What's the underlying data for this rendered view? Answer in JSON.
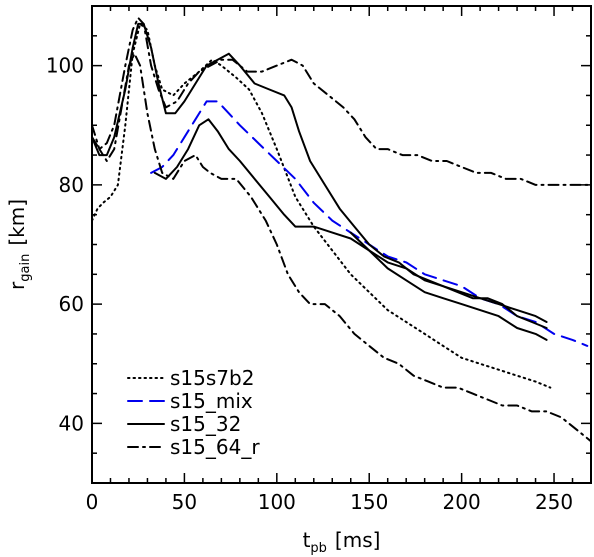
{
  "chart_data": {
    "type": "line",
    "title": "",
    "xlabel": "t_pb [ms]",
    "xlabel_main": "t",
    "xlabel_sub": "pb",
    "xlabel_unit": "[ms]",
    "ylabel": "r_gain [km]",
    "ylabel_main": "r",
    "ylabel_sub": "gain",
    "ylabel_unit": "[km]",
    "xlim": [
      0,
      270
    ],
    "ylim": [
      30,
      110
    ],
    "x_ticks": [
      0,
      50,
      100,
      150,
      200,
      250
    ],
    "y_ticks": [
      40,
      60,
      80,
      100
    ],
    "grid": false,
    "legend_position": "bottom-left",
    "series": [
      {
        "name": "s15s7b2",
        "color": "#000000",
        "dash": "dotted",
        "points": [
          [
            0,
            74
          ],
          [
            3,
            76
          ],
          [
            6,
            77
          ],
          [
            10,
            78
          ],
          [
            14,
            80
          ],
          [
            18,
            90
          ],
          [
            22,
            102
          ],
          [
            26,
            107
          ],
          [
            30,
            106
          ],
          [
            34,
            100
          ],
          [
            38,
            96
          ],
          [
            44,
            95
          ],
          [
            50,
            97
          ],
          [
            58,
            99
          ],
          [
            65,
            101
          ],
          [
            70,
            100
          ],
          [
            78,
            98
          ],
          [
            85,
            96
          ],
          [
            92,
            92
          ],
          [
            100,
            86
          ],
          [
            110,
            78
          ],
          [
            120,
            73
          ],
          [
            130,
            69
          ],
          [
            140,
            65
          ],
          [
            150,
            62
          ],
          [
            160,
            59
          ],
          [
            170,
            57
          ],
          [
            180,
            55
          ],
          [
            190,
            53
          ],
          [
            200,
            51
          ],
          [
            210,
            50
          ],
          [
            220,
            49
          ],
          [
            230,
            48
          ],
          [
            240,
            47
          ],
          [
            248,
            46
          ]
        ]
      },
      {
        "name": "s15_mix",
        "color": "#0000ee",
        "dash": "dashed",
        "points": [
          [
            32,
            82
          ],
          [
            38,
            83
          ],
          [
            44,
            85
          ],
          [
            50,
            88
          ],
          [
            56,
            91
          ],
          [
            62,
            94
          ],
          [
            68,
            94
          ],
          [
            74,
            92
          ],
          [
            80,
            90
          ],
          [
            90,
            87
          ],
          [
            100,
            84
          ],
          [
            110,
            81
          ],
          [
            120,
            77
          ],
          [
            130,
            74
          ],
          [
            140,
            72
          ],
          [
            150,
            70
          ],
          [
            160,
            68
          ],
          [
            170,
            67
          ],
          [
            180,
            65
          ],
          [
            190,
            64
          ],
          [
            200,
            63
          ],
          [
            210,
            61
          ],
          [
            220,
            60
          ],
          [
            230,
            58
          ],
          [
            240,
            57
          ],
          [
            250,
            55
          ],
          [
            260,
            54
          ],
          [
            268,
            53
          ]
        ]
      },
      {
        "name": "s15_32",
        "color": "#000000",
        "dash": "solid",
        "points": [
          [
            0,
            88
          ],
          [
            4,
            85
          ],
          [
            8,
            85
          ],
          [
            12,
            88
          ],
          [
            18,
            96
          ],
          [
            22,
            103
          ],
          [
            25,
            107
          ],
          [
            28,
            107
          ],
          [
            32,
            103
          ],
          [
            36,
            97
          ],
          [
            40,
            92
          ],
          [
            45,
            92
          ],
          [
            50,
            94
          ],
          [
            56,
            97
          ],
          [
            62,
            100
          ],
          [
            68,
            101
          ],
          [
            74,
            102
          ],
          [
            80,
            100
          ],
          [
            88,
            97
          ],
          [
            96,
            96
          ],
          [
            104,
            95
          ],
          [
            108,
            93
          ],
          [
            112,
            89
          ],
          [
            118,
            84
          ],
          [
            126,
            80
          ],
          [
            134,
            76
          ],
          [
            142,
            73
          ],
          [
            150,
            70
          ],
          [
            158,
            68
          ],
          [
            166,
            67
          ],
          [
            174,
            65
          ],
          [
            182,
            64
          ],
          [
            190,
            63
          ],
          [
            198,
            62
          ],
          [
            206,
            61
          ],
          [
            214,
            61
          ],
          [
            222,
            60
          ],
          [
            230,
            58
          ],
          [
            238,
            57
          ],
          [
            246,
            56
          ]
        ]
      },
      {
        "name": "s15_32",
        "color": "#000000",
        "dash": "solid",
        "points": [
          [
            34,
            82
          ],
          [
            40,
            81
          ],
          [
            46,
            83
          ],
          [
            52,
            86
          ],
          [
            58,
            90
          ],
          [
            63,
            91
          ],
          [
            68,
            89
          ],
          [
            74,
            86
          ],
          [
            80,
            84
          ],
          [
            88,
            81
          ],
          [
            96,
            78
          ],
          [
            104,
            75
          ],
          [
            110,
            73
          ],
          [
            120,
            73
          ],
          [
            130,
            72
          ],
          [
            140,
            71
          ],
          [
            150,
            69
          ],
          [
            160,
            67
          ],
          [
            170,
            66
          ],
          [
            180,
            64
          ],
          [
            190,
            63
          ],
          [
            200,
            62
          ],
          [
            210,
            61
          ],
          [
            220,
            60
          ],
          [
            230,
            59
          ],
          [
            240,
            58
          ],
          [
            246,
            57
          ]
        ]
      },
      {
        "name": "s15_32",
        "color": "#000000",
        "dash": "solid",
        "points": [
          [
            140,
            72
          ],
          [
            150,
            69
          ],
          [
            160,
            66
          ],
          [
            170,
            64
          ],
          [
            180,
            62
          ],
          [
            190,
            61
          ],
          [
            200,
            60
          ],
          [
            210,
            59
          ],
          [
            220,
            58
          ],
          [
            230,
            56
          ],
          [
            240,
            55
          ],
          [
            246,
            54
          ]
        ]
      },
      {
        "name": "s15_64_r",
        "color": "#000000",
        "dash": "dashdot",
        "points": [
          [
            0,
            90
          ],
          [
            4,
            86
          ],
          [
            8,
            84
          ],
          [
            12,
            86
          ],
          [
            16,
            93
          ],
          [
            20,
            100
          ],
          [
            23,
            102
          ],
          [
            26,
            100
          ],
          [
            30,
            92
          ],
          [
            34,
            86
          ],
          [
            38,
            82
          ],
          [
            44,
            81
          ],
          [
            50,
            84
          ],
          [
            56,
            85
          ],
          [
            60,
            83
          ],
          [
            64,
            82
          ],
          [
            70,
            81
          ],
          [
            78,
            81
          ],
          [
            86,
            78
          ],
          [
            94,
            74
          ],
          [
            100,
            70
          ],
          [
            106,
            65
          ],
          [
            112,
            62
          ],
          [
            118,
            60
          ],
          [
            126,
            60
          ],
          [
            134,
            58
          ],
          [
            142,
            55
          ],
          [
            150,
            53
          ],
          [
            158,
            51
          ],
          [
            166,
            50
          ],
          [
            174,
            48
          ],
          [
            182,
            47
          ],
          [
            190,
            46
          ],
          [
            198,
            46
          ],
          [
            206,
            45
          ],
          [
            214,
            44
          ],
          [
            222,
            43
          ],
          [
            230,
            43
          ],
          [
            238,
            42
          ],
          [
            246,
            42
          ],
          [
            254,
            41
          ],
          [
            262,
            39
          ],
          [
            270,
            37
          ]
        ]
      },
      {
        "name": "s15_64_r",
        "color": "#000000",
        "dash": "dashdot",
        "points": [
          [
            0,
            88
          ],
          [
            4,
            86
          ],
          [
            8,
            87
          ],
          [
            12,
            90
          ],
          [
            18,
            100
          ],
          [
            22,
            106
          ],
          [
            25,
            108
          ],
          [
            28,
            107
          ],
          [
            32,
            100
          ],
          [
            36,
            96
          ],
          [
            40,
            93
          ],
          [
            46,
            94
          ],
          [
            52,
            97
          ],
          [
            58,
            99
          ],
          [
            64,
            100
          ],
          [
            70,
            101
          ],
          [
            76,
            101
          ],
          [
            84,
            99
          ],
          [
            92,
            99
          ],
          [
            100,
            100
          ],
          [
            108,
            101
          ],
          [
            114,
            100
          ],
          [
            120,
            97
          ],
          [
            128,
            95
          ],
          [
            136,
            93
          ],
          [
            142,
            91
          ],
          [
            148,
            88
          ],
          [
            154,
            86
          ],
          [
            160,
            86
          ],
          [
            168,
            85
          ],
          [
            176,
            85
          ],
          [
            184,
            84
          ],
          [
            192,
            84
          ],
          [
            200,
            83
          ],
          [
            208,
            82
          ],
          [
            216,
            82
          ],
          [
            224,
            81
          ],
          [
            232,
            81
          ],
          [
            240,
            80
          ],
          [
            248,
            80
          ],
          [
            256,
            80
          ],
          [
            264,
            80
          ],
          [
            270,
            80
          ]
        ]
      }
    ],
    "legend": [
      {
        "label": "s15s7b2",
        "dash": "dotted",
        "color": "#000000"
      },
      {
        "label": "s15_mix",
        "dash": "dashed",
        "color": "#0000ee"
      },
      {
        "label": "s15_32",
        "dash": "solid",
        "color": "#000000"
      },
      {
        "label": "s15_64_r",
        "dash": "dashdot",
        "color": "#000000"
      }
    ]
  }
}
